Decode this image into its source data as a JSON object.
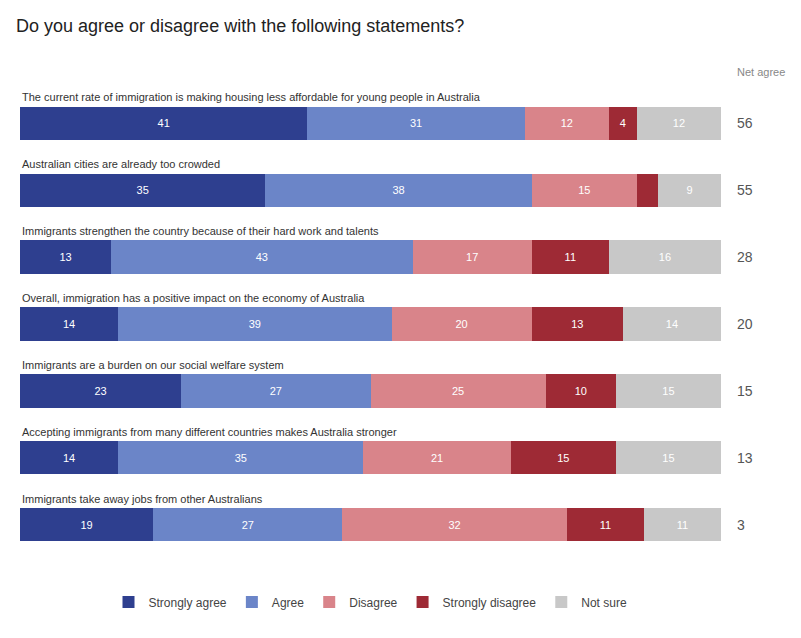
{
  "chart_data": {
    "type": "bar",
    "orientation": "horizontal",
    "stacked": true,
    "title": "Do you agree or disagree with the following statements?",
    "categories": [
      "The current rate of immigration is making housing less affordable for young people in Australia",
      "Australian cities are already too crowded",
      "Immigrants strengthen the country because of their hard work and talents",
      "Overall, immigration has a positive impact on the economy of Australia",
      "Immigrants are a burden on our social welfare system",
      "Accepting immigrants from many different countries makes Australia stronger",
      "Immigrants take away jobs from other Australians"
    ],
    "series": [
      {
        "name": "Strongly agree",
        "color": "#2e3f8f",
        "values": [
          41,
          35,
          13,
          14,
          23,
          14,
          19
        ]
      },
      {
        "name": "Agree",
        "color": "#6b85c8",
        "values": [
          31,
          38,
          43,
          39,
          27,
          35,
          27
        ]
      },
      {
        "name": "Disagree",
        "color": "#d9848a",
        "values": [
          12,
          15,
          17,
          20,
          25,
          21,
          32
        ]
      },
      {
        "name": "Strongly disagree",
        "color": "#9e2a35",
        "values": [
          4,
          3,
          11,
          13,
          10,
          15,
          11
        ],
        "value_labels": [
          "4",
          null,
          "11",
          "13",
          "10",
          "15",
          "11"
        ]
      },
      {
        "name": "Not sure",
        "color": "#c8c8c8",
        "values": [
          12,
          9,
          16,
          14,
          15,
          15,
          11
        ]
      }
    ],
    "net_agree": {
      "label": "Net agree",
      "values": [
        56,
        55,
        28,
        20,
        15,
        13,
        3
      ]
    },
    "data_labels": true,
    "xlim": [
      0,
      100
    ],
    "tick_labels": false,
    "grid": false,
    "legend": "bottom"
  }
}
